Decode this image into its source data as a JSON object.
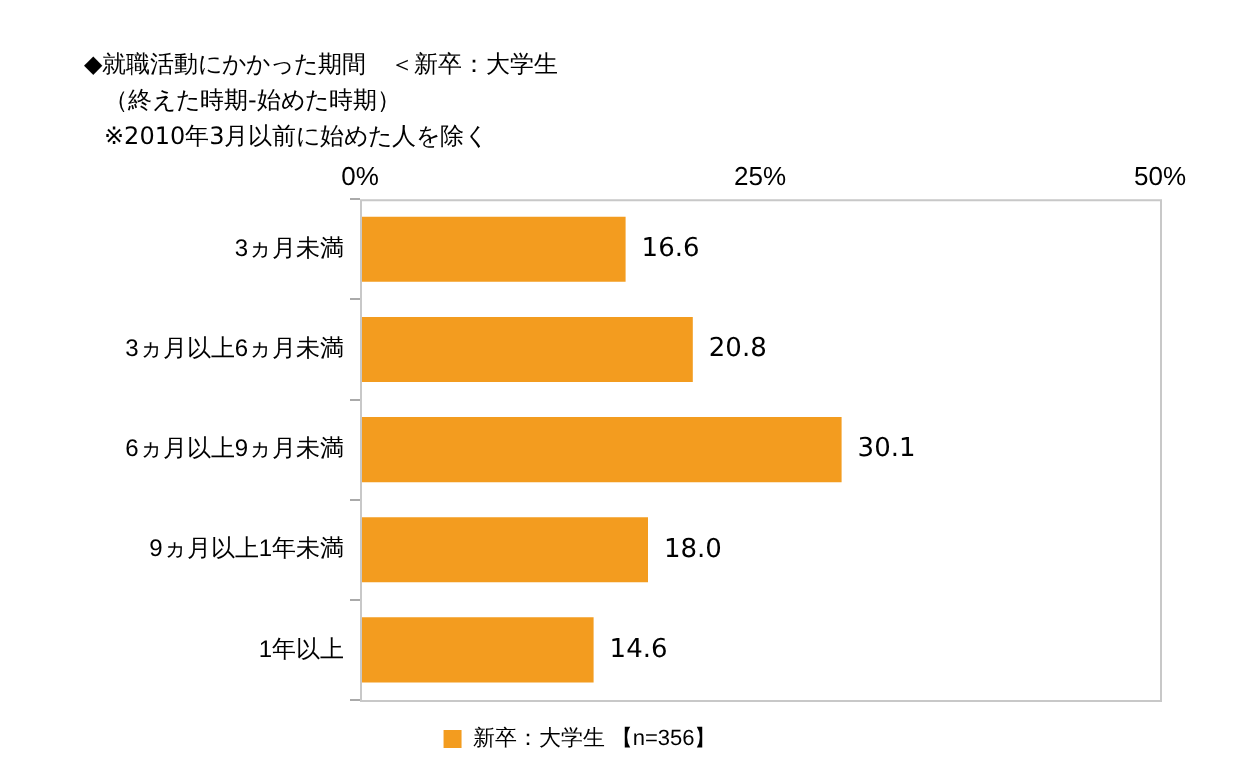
{
  "chart_data": {
    "type": "bar",
    "orientation": "horizontal",
    "title": "◆就職活動にかかった期間　＜新卒：大学生",
    "subtitle": "（終えた時期-始めた時期）",
    "annotations": [
      "※2010年3月以前に始めた人を除く"
    ],
    "categories": [
      "3ヵ月未満",
      "3ヵ月以上6ヵ月未満",
      "6ヵ月以上9ヵ月未満",
      "9ヵ月以上1年未満",
      "1年以上"
    ],
    "series": [
      {
        "name": "新卒：大学生 【n=356】",
        "color": "#f39c1f",
        "values": [
          16.6,
          20.8,
          30.1,
          18.0,
          14.6
        ],
        "value_labels": [
          "16.6",
          "20.8",
          "30.1",
          "18.0",
          "14.6"
        ]
      }
    ],
    "xlim": [
      0,
      50
    ],
    "xticks": [
      {
        "value": 0,
        "label": "0%"
      },
      {
        "value": 25,
        "label": "25%"
      },
      {
        "value": 50,
        "label": "50%"
      }
    ],
    "legend": "bottom",
    "grid": false
  }
}
